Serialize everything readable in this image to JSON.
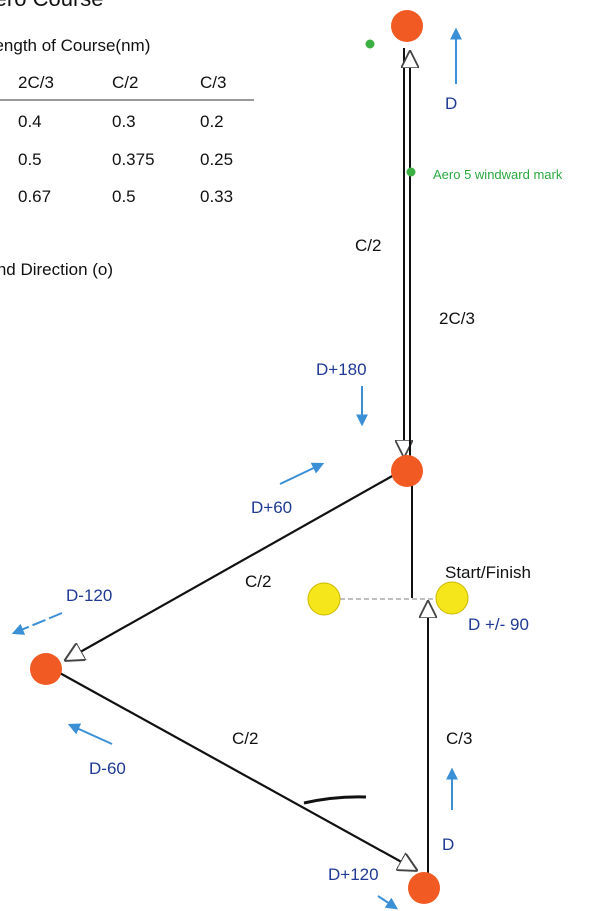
{
  "title": "Aero Course",
  "table": {
    "caption": "Length of Course(nm)",
    "headers": [
      "2C/3",
      "C/2",
      "C/3"
    ],
    "rows": [
      [
        "0.4",
        "0.3",
        "0.2"
      ],
      [
        "0.5",
        "0.375",
        "0.25"
      ],
      [
        "0.67",
        "0.5",
        "0.33"
      ]
    ]
  },
  "wind_direction_label": "Wind Direction (o)",
  "legend": {
    "windward_mark": "Aero 5 windward mark",
    "color": "#3cb043"
  },
  "leg_labels": {
    "upwind_left": "C/2",
    "upwind_right": "2C/3",
    "reach_upper": "C/2",
    "reach_lower": "C/2",
    "final": "C/3"
  },
  "direction_labels": {
    "top": "D",
    "d180": "D+180",
    "d60": "D+60",
    "d_minus_120": "D-120",
    "d_minus_60": "D-60",
    "d_right": "D",
    "d120": "D+120",
    "d_pm_90": "D +/- 90"
  },
  "start_finish_label": "Start/Finish",
  "colors": {
    "mark": "#f25a24",
    "start": "#f5e61c",
    "arrow": "#3a8fd6",
    "dir_text": "#1f3a93"
  }
}
